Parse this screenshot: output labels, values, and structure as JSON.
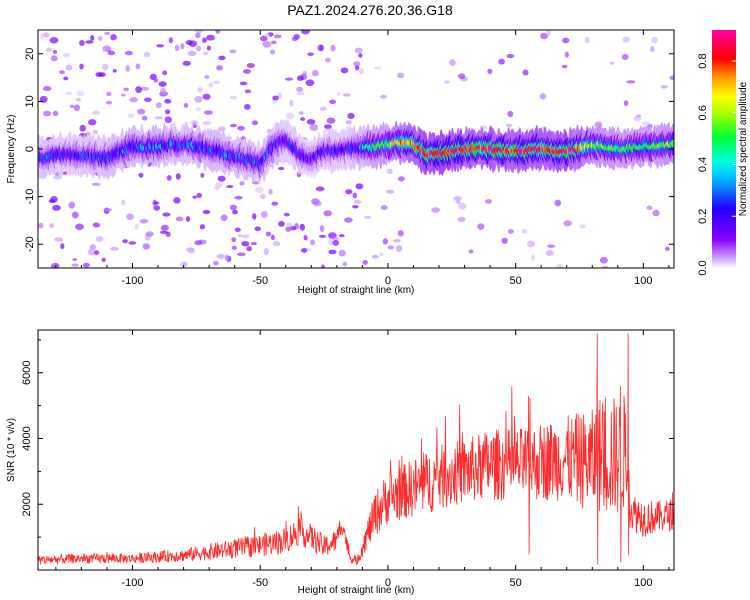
{
  "title": "PAZ1.2024.276.20.36.G18",
  "colors": {
    "snr_line": "#ff2a2a",
    "axis": "#000000",
    "background": "#ffffff"
  },
  "chart_data": [
    {
      "type": "heatmap",
      "xlabel": "Height of straight line (km)",
      "ylabel": "Frequency (Hz)",
      "xlim": [
        -137,
        112
      ],
      "ylim": [
        -25,
        25
      ],
      "x_ticks": [
        -100,
        -50,
        0,
        50,
        100
      ],
      "y_ticks": [
        -20,
        -10,
        0,
        10,
        20
      ],
      "colorbar": {
        "label": "Normalized spectral amplitude",
        "range": [
          0,
          0.92
        ],
        "ticks": [
          0.0,
          0.2,
          0.4,
          0.6,
          0.8
        ],
        "tick_labels": [
          "0.0",
          "0.2",
          "0.4",
          "0.6",
          "0.8"
        ],
        "colormap": "rainbow (white-violet-blue-cyan-green-yellow-red-magenta)"
      },
      "ridge": {
        "description": "Dominant spectral ridge near 0 Hz",
        "x": [
          -137,
          -125,
          -110,
          -100,
          -90,
          -80,
          -70,
          -60,
          -50,
          -45,
          -40,
          -35,
          -30,
          -25,
          -15,
          -5,
          0,
          5,
          10,
          15,
          20,
          30,
          40,
          50,
          60,
          70,
          80,
          90,
          100,
          112
        ],
        "freq": [
          -2,
          -1,
          -2,
          0.5,
          0.5,
          1,
          0,
          -1.5,
          -3,
          0.5,
          2,
          -1,
          -2,
          -0.5,
          0,
          0.5,
          1,
          1.5,
          1,
          -1,
          -1,
          0,
          0,
          -0.5,
          0,
          -0.5,
          1,
          0,
          0.5,
          1
        ],
        "amplitude": [
          0.3,
          0.25,
          0.3,
          0.35,
          0.35,
          0.3,
          0.35,
          0.3,
          0.3,
          0.3,
          0.25,
          0.25,
          0.2,
          0.25,
          0.25,
          0.5,
          0.55,
          0.7,
          0.8,
          0.85,
          0.9,
          0.88,
          0.85,
          0.85,
          0.85,
          0.88,
          0.6,
          0.5,
          0.5,
          0.55
        ]
      }
    },
    {
      "type": "line",
      "xlabel": "Height of straight line (km)",
      "ylabel": "SNR (10 * v/v)",
      "xlim": [
        -137,
        112
      ],
      "ylim": [
        0,
        7300
      ],
      "x_ticks": [
        -100,
        -50,
        0,
        50,
        100
      ],
      "y_ticks": [
        2000,
        4000,
        6000
      ],
      "series": [
        {
          "envelope_x": [
            -137,
            -120,
            -100,
            -80,
            -60,
            -50,
            -40,
            -35,
            -30,
            -25,
            -20,
            -18,
            -15,
            -12,
            -10,
            -5,
            0,
            10,
            20,
            30,
            40,
            50,
            60,
            70,
            80,
            85,
            90,
            93,
            95,
            100,
            105,
            112
          ],
          "envelope_y": [
            300,
            350,
            350,
            450,
            650,
            750,
            900,
            1200,
            1000,
            700,
            900,
            1500,
            400,
            250,
            700,
            1700,
            2200,
            2500,
            2800,
            3000,
            3200,
            3200,
            3300,
            3400,
            3300,
            3600,
            3400,
            3600,
            1800,
            1600,
            1600,
            1700
          ],
          "spread_y": [
            150,
            150,
            150,
            200,
            300,
            350,
            400,
            450,
            400,
            350,
            350,
            400,
            150,
            120,
            300,
            700,
            800,
            900,
            1000,
            1000,
            1100,
            1100,
            1200,
            1300,
            1600,
            2000,
            1800,
            1800,
            600,
            600,
            500,
            500
          ],
          "peaks": [
            {
              "x": 82,
              "y": 7200
            },
            {
              "x": 94,
              "y": 7200
            },
            {
              "x": 55,
              "y": 5300
            },
            {
              "x": 91,
              "y": 5600
            }
          ]
        }
      ]
    }
  ]
}
